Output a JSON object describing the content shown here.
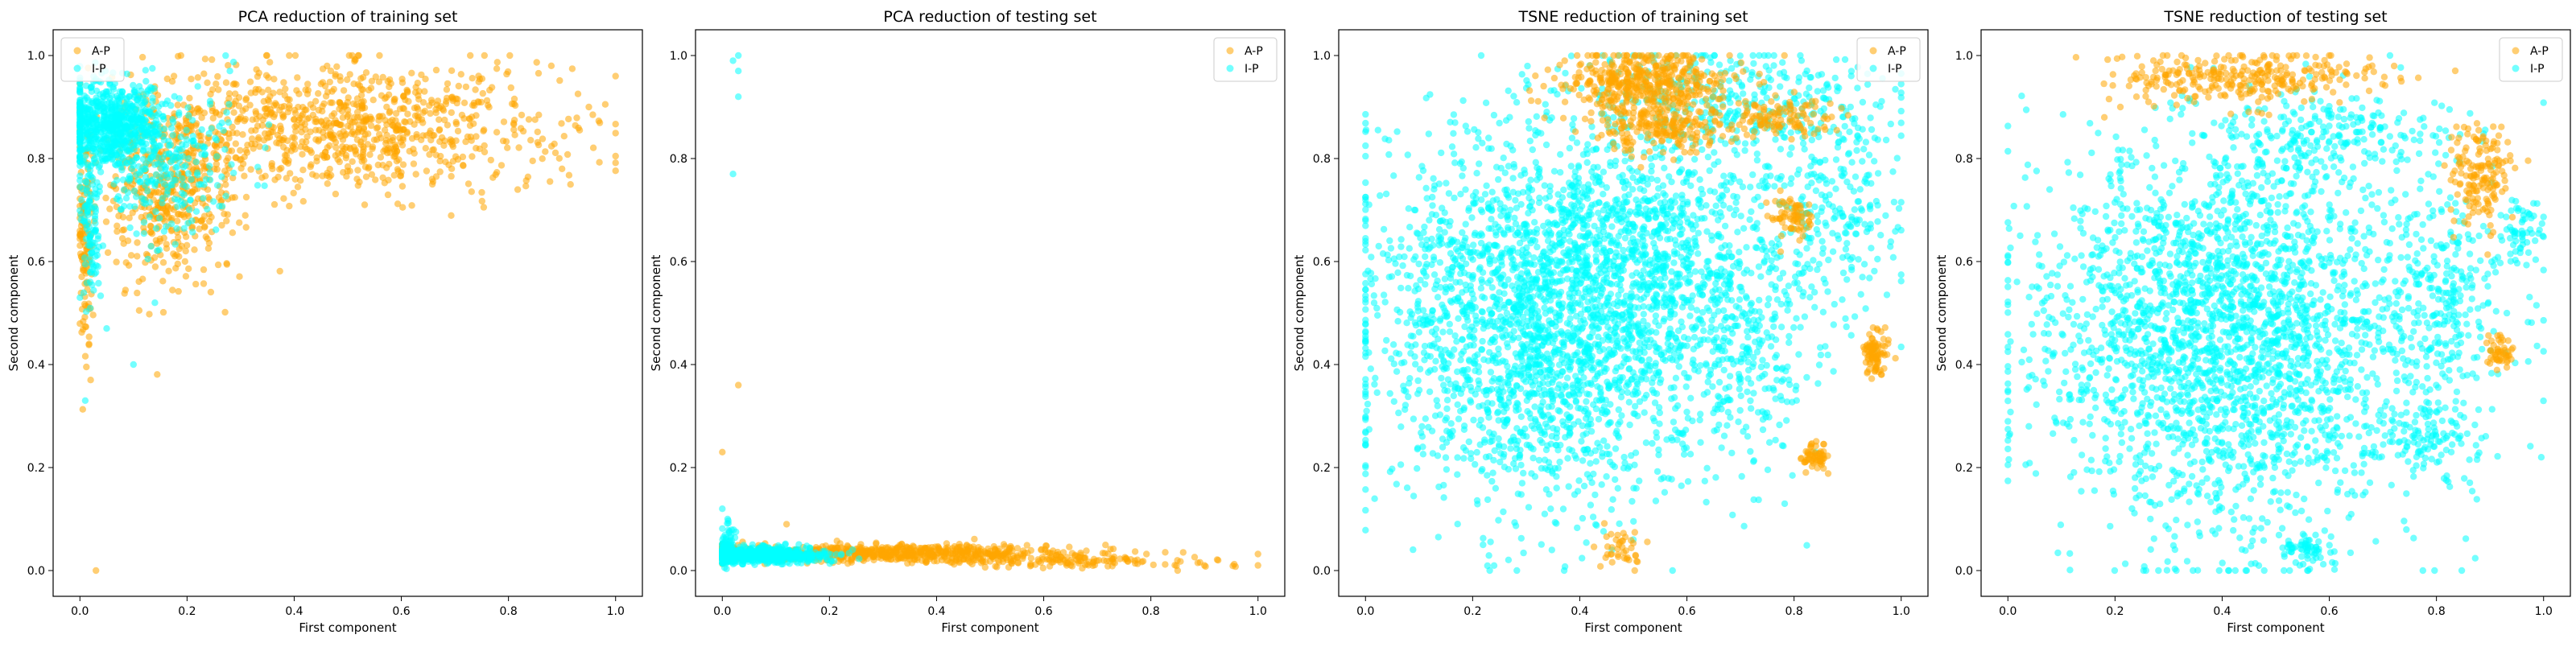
{
  "legend": {
    "series": [
      {
        "name": "A-P",
        "color": "#ffa500"
      },
      {
        "name": "I-P",
        "color": "#00ffff"
      }
    ]
  },
  "chart_data": [
    {
      "type": "scatter",
      "title": "PCA reduction of training set",
      "xlabel": "First component",
      "ylabel": "Second component",
      "xlim": [
        -0.05,
        1.05
      ],
      "ylim": [
        -0.05,
        1.05
      ],
      "xticks": [
        "0.0",
        "0.2",
        "0.4",
        "0.6",
        "0.8",
        "1.0"
      ],
      "yticks": [
        "0.0",
        "0.2",
        "0.4",
        "0.6",
        "0.8",
        "1.0"
      ],
      "legend_position": "top-left",
      "series": [
        {
          "name": "A-P",
          "color": "#ffa500",
          "clusters": [
            {
              "cx": 0.5,
              "cy": 0.86,
              "sx": 0.2,
              "sy": 0.06,
              "n": 900
            },
            {
              "cx": 0.17,
              "cy": 0.74,
              "sx": 0.06,
              "sy": 0.09,
              "n": 450
            },
            {
              "cx": 0.01,
              "cy": 0.62,
              "sx": 0.006,
              "sy": 0.12,
              "n": 120
            }
          ],
          "points": [
            [
              0.03,
              0.0
            ],
            [
              0.02,
              0.37
            ],
            [
              0.9,
              0.78
            ],
            [
              0.95,
              0.9
            ],
            [
              1.0,
              0.96
            ],
            [
              0.88,
              0.98
            ]
          ]
        },
        {
          "name": "I-P",
          "color": "#00ffff",
          "clusters": [
            {
              "cx": 0.06,
              "cy": 0.87,
              "sx": 0.05,
              "sy": 0.04,
              "n": 700
            },
            {
              "cx": 0.15,
              "cy": 0.78,
              "sx": 0.07,
              "sy": 0.07,
              "n": 250
            },
            {
              "cx": 0.02,
              "cy": 0.66,
              "sx": 0.01,
              "sy": 0.07,
              "n": 100
            }
          ],
          "points": [
            [
              0.1,
              0.4
            ],
            [
              0.05,
              0.47
            ],
            [
              0.14,
              0.52
            ],
            [
              0.28,
              0.97
            ],
            [
              0.22,
              0.94
            ],
            [
              0.01,
              0.33
            ]
          ]
        }
      ]
    },
    {
      "type": "scatter",
      "title": "PCA reduction of testing set",
      "xlabel": "First component",
      "ylabel": "Second component",
      "xlim": [
        -0.05,
        1.05
      ],
      "ylim": [
        -0.05,
        1.05
      ],
      "xticks": [
        "0.0",
        "0.2",
        "0.4",
        "0.6",
        "0.8",
        "1.0"
      ],
      "yticks": [
        "0.0",
        "0.2",
        "0.4",
        "0.6",
        "0.8",
        "1.0"
      ],
      "legend_position": "top-right",
      "series": [
        {
          "name": "A-P",
          "color": "#ffa500",
          "clusters": [
            {
              "cx": 0.3,
              "cy": 0.033,
              "sx": 0.18,
              "sy": 0.008,
              "n": 700
            },
            {
              "cx": 0.65,
              "cy": 0.018,
              "sx": 0.15,
              "sy": 0.006,
              "n": 120
            }
          ],
          "points": [
            [
              0.0,
              0.23
            ],
            [
              0.03,
              0.36
            ],
            [
              0.12,
              0.09
            ],
            [
              0.85,
              0.0
            ],
            [
              1.0,
              0.01
            ],
            [
              0.9,
              0.01
            ]
          ]
        },
        {
          "name": "I-P",
          "color": "#00ffff",
          "clusters": [
            {
              "cx": 0.08,
              "cy": 0.03,
              "sx": 0.06,
              "sy": 0.007,
              "n": 650
            },
            {
              "cx": 0.01,
              "cy": 0.05,
              "sx": 0.008,
              "sy": 0.02,
              "n": 80
            }
          ],
          "points": [
            [
              0.03,
              1.0
            ],
            [
              0.02,
              0.99
            ],
            [
              0.03,
              0.97
            ],
            [
              0.03,
              0.92
            ],
            [
              0.02,
              0.77
            ],
            [
              0.0,
              0.12
            ],
            [
              0.01,
              0.1
            ]
          ]
        }
      ]
    },
    {
      "type": "scatter",
      "title": "TSNE reduction of training set",
      "xlabel": "First component",
      "ylabel": "Second component",
      "xlim": [
        -0.05,
        1.05
      ],
      "ylim": [
        -0.05,
        1.05
      ],
      "xticks": [
        "0.0",
        "0.2",
        "0.4",
        "0.6",
        "0.8",
        "1.0"
      ],
      "yticks": [
        "0.0",
        "0.2",
        "0.4",
        "0.6",
        "0.8",
        "1.0"
      ],
      "legend_position": "top-right",
      "series": [
        {
          "name": "I-P",
          "color": "#00ffff",
          "clusters": [
            {
              "cx": 0.34,
              "cy": 0.49,
              "sx": 0.17,
              "sy": 0.18,
              "n": 2600
            },
            {
              "cx": 0.55,
              "cy": 0.63,
              "sx": 0.12,
              "sy": 0.1,
              "n": 500
            },
            {
              "cx": 0.66,
              "cy": 0.92,
              "sx": 0.14,
              "sy": 0.05,
              "n": 300
            },
            {
              "cx": 0.86,
              "cy": 0.72,
              "sx": 0.07,
              "sy": 0.12,
              "n": 300
            },
            {
              "cx": 0.72,
              "cy": 0.42,
              "sx": 0.06,
              "sy": 0.1,
              "n": 200
            }
          ],
          "points": [
            [
              0.5,
              0.06
            ],
            [
              0.46,
              0.04
            ],
            [
              0.95,
              0.43
            ],
            [
              0.84,
              0.23
            ]
          ]
        },
        {
          "name": "A-P",
          "color": "#ffa500",
          "clusters": [
            {
              "cx": 0.52,
              "cy": 0.95,
              "sx": 0.08,
              "sy": 0.03,
              "n": 450
            },
            {
              "cx": 0.55,
              "cy": 0.86,
              "sx": 0.06,
              "sy": 0.025,
              "n": 200
            },
            {
              "cx": 0.78,
              "cy": 0.88,
              "sx": 0.05,
              "sy": 0.02,
              "n": 120
            },
            {
              "cx": 0.8,
              "cy": 0.69,
              "sx": 0.02,
              "sy": 0.02,
              "n": 70
            },
            {
              "cx": 0.95,
              "cy": 0.42,
              "sx": 0.012,
              "sy": 0.02,
              "n": 90
            },
            {
              "cx": 0.84,
              "cy": 0.22,
              "sx": 0.012,
              "sy": 0.015,
              "n": 60
            },
            {
              "cx": 0.48,
              "cy": 0.04,
              "sx": 0.02,
              "sy": 0.02,
              "n": 40
            }
          ],
          "points": []
        }
      ]
    },
    {
      "type": "scatter",
      "title": "TSNE reduction of testing set",
      "xlabel": "First component",
      "ylabel": "Second component",
      "xlim": [
        -0.05,
        1.05
      ],
      "ylim": [
        -0.05,
        1.05
      ],
      "xticks": [
        "0.0",
        "0.2",
        "0.4",
        "0.6",
        "0.8",
        "1.0"
      ],
      "yticks": [
        "0.0",
        "0.2",
        "0.4",
        "0.6",
        "0.8",
        "1.0"
      ],
      "legend_position": "top-right",
      "series": [
        {
          "name": "I-P",
          "color": "#00ffff",
          "clusters": [
            {
              "cx": 0.42,
              "cy": 0.46,
              "sx": 0.18,
              "sy": 0.19,
              "n": 2600
            },
            {
              "cx": 0.82,
              "cy": 0.52,
              "sx": 0.06,
              "sy": 0.12,
              "n": 250
            },
            {
              "cx": 0.6,
              "cy": 0.84,
              "sx": 0.12,
              "sy": 0.04,
              "n": 200
            },
            {
              "cx": 0.78,
              "cy": 0.26,
              "sx": 0.05,
              "sy": 0.03,
              "n": 100
            },
            {
              "cx": 0.56,
              "cy": 0.04,
              "sx": 0.03,
              "sy": 0.015,
              "n": 60
            },
            {
              "cx": 0.96,
              "cy": 0.66,
              "sx": 0.02,
              "sy": 0.03,
              "n": 60
            }
          ],
          "points": []
        },
        {
          "name": "A-P",
          "color": "#ffa500",
          "clusters": [
            {
              "cx": 0.45,
              "cy": 0.96,
              "sx": 0.12,
              "sy": 0.025,
              "n": 300
            },
            {
              "cx": 0.88,
              "cy": 0.77,
              "sx": 0.03,
              "sy": 0.05,
              "n": 160
            },
            {
              "cx": 0.92,
              "cy": 0.42,
              "sx": 0.015,
              "sy": 0.015,
              "n": 50
            }
          ],
          "points": [
            [
              0.18,
              0.88
            ],
            [
              0.21,
              0.9
            ],
            [
              0.24,
              0.92
            ]
          ]
        }
      ]
    }
  ]
}
